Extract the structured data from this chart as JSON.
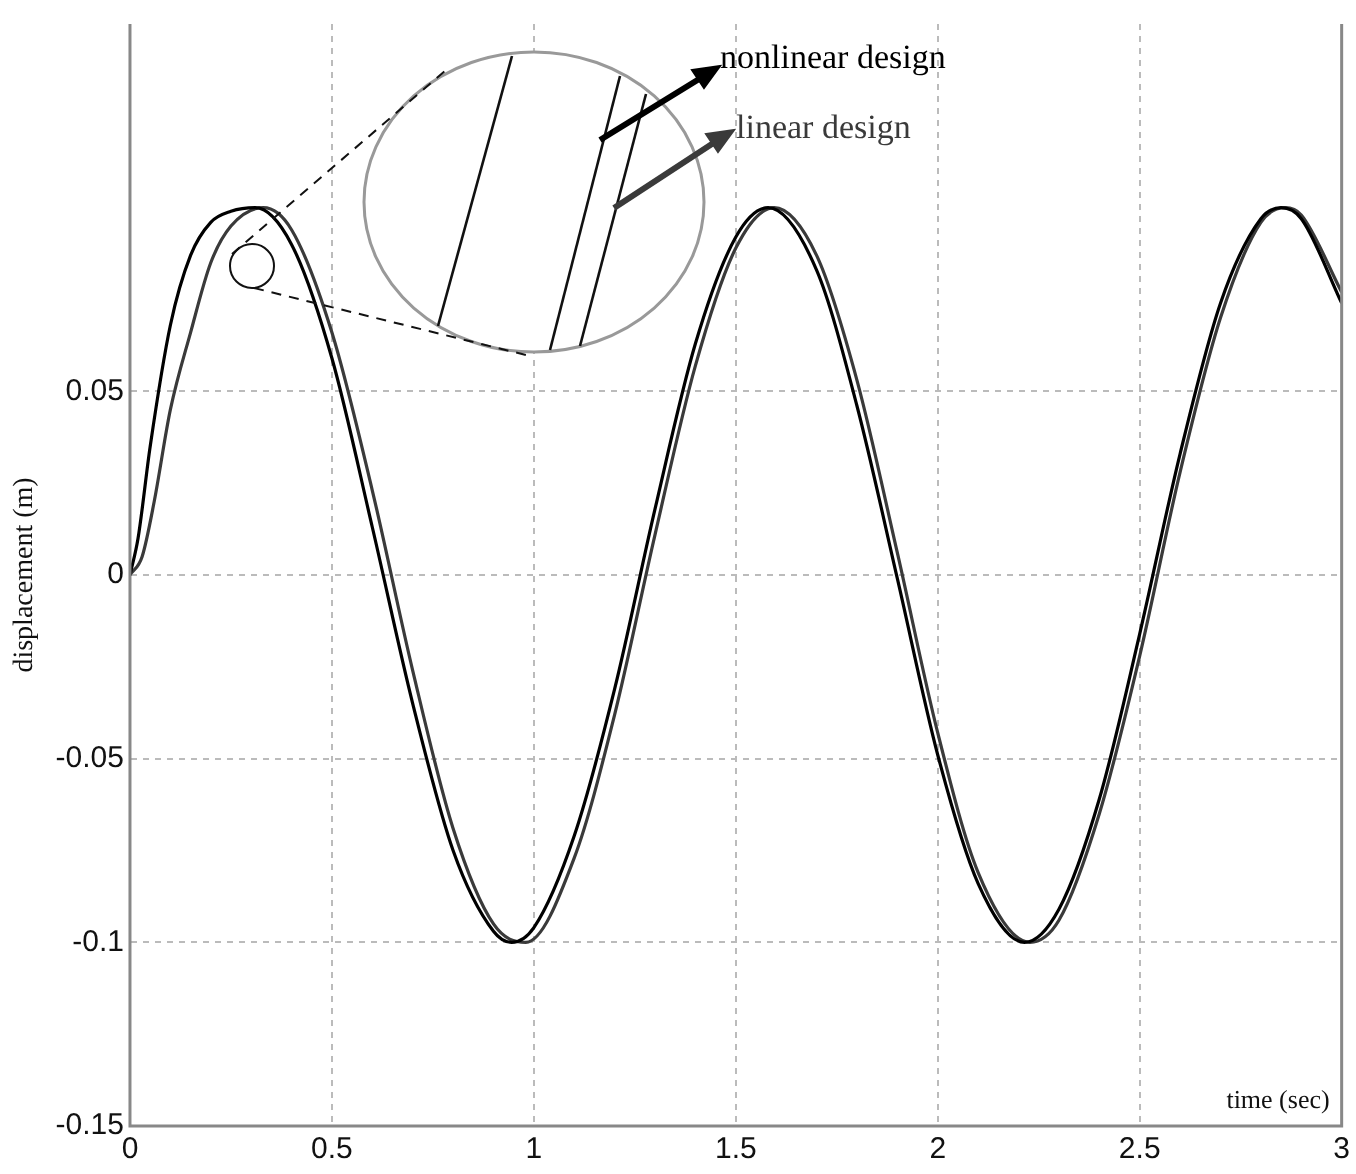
{
  "chart_data": {
    "type": "line",
    "xlabel": "time (sec)",
    "ylabel": "displacement (m)",
    "xlim": [
      0,
      3
    ],
    "ylim": [
      -0.15,
      0.15
    ],
    "xticks": [
      0,
      0.5,
      1,
      1.5,
      2,
      2.5,
      3
    ],
    "yticks": [
      -0.15,
      -0.1,
      -0.05,
      0,
      0.05
    ],
    "grid": true,
    "legend": "top",
    "marker": "none",
    "line_style": "solid",
    "series": [
      {
        "name": "nonlinear design",
        "color": "#000000",
        "x": [
          0,
          0.02,
          0.05,
          0.1,
          0.15,
          0.2,
          0.25,
          0.31,
          0.4,
          0.5,
          0.6,
          0.7,
          0.8,
          0.9,
          0.945,
          1.0,
          1.1,
          1.2,
          1.3,
          1.4,
          1.5,
          1.58,
          1.7,
          1.8,
          1.9,
          2.0,
          2.1,
          2.215,
          2.3,
          2.4,
          2.5,
          2.6,
          2.7,
          2.8,
          2.85,
          2.9,
          3.0
        ],
        "values": [
          0,
          0.01,
          0.035,
          0.068,
          0.087,
          0.096,
          0.099,
          0.1,
          0.09,
          0.059,
          0.013,
          -0.035,
          -0.075,
          -0.097,
          -0.1,
          -0.096,
          -0.071,
          -0.031,
          0.018,
          0.063,
          0.092,
          0.1,
          0.083,
          0.046,
          -0.001,
          -0.049,
          -0.084,
          -0.1,
          -0.091,
          -0.061,
          -0.016,
          0.033,
          0.074,
          0.097,
          0.1,
          0.097,
          0.074
        ]
      },
      {
        "name": "linear design",
        "color": "#3a3a3a",
        "x": [
          0,
          0.03,
          0.06,
          0.1,
          0.15,
          0.2,
          0.25,
          0.33,
          0.4,
          0.5,
          0.6,
          0.7,
          0.8,
          0.9,
          0.98,
          1.1,
          1.2,
          1.3,
          1.4,
          1.5,
          1.595,
          1.7,
          1.8,
          1.9,
          2.0,
          2.1,
          2.228,
          2.3,
          2.4,
          2.5,
          2.6,
          2.7,
          2.8,
          2.86,
          2.9,
          3.0
        ],
        "values": [
          0,
          0.005,
          0.02,
          0.045,
          0.066,
          0.085,
          0.095,
          0.1,
          0.094,
          0.066,
          0.023,
          -0.026,
          -0.069,
          -0.095,
          -0.1,
          -0.077,
          -0.038,
          0.011,
          0.057,
          0.089,
          0.1,
          0.087,
          0.053,
          0.006,
          -0.043,
          -0.081,
          -0.1,
          -0.094,
          -0.065,
          -0.022,
          0.028,
          0.07,
          0.096,
          0.1,
          0.098,
          0.077
        ]
      }
    ]
  }
}
